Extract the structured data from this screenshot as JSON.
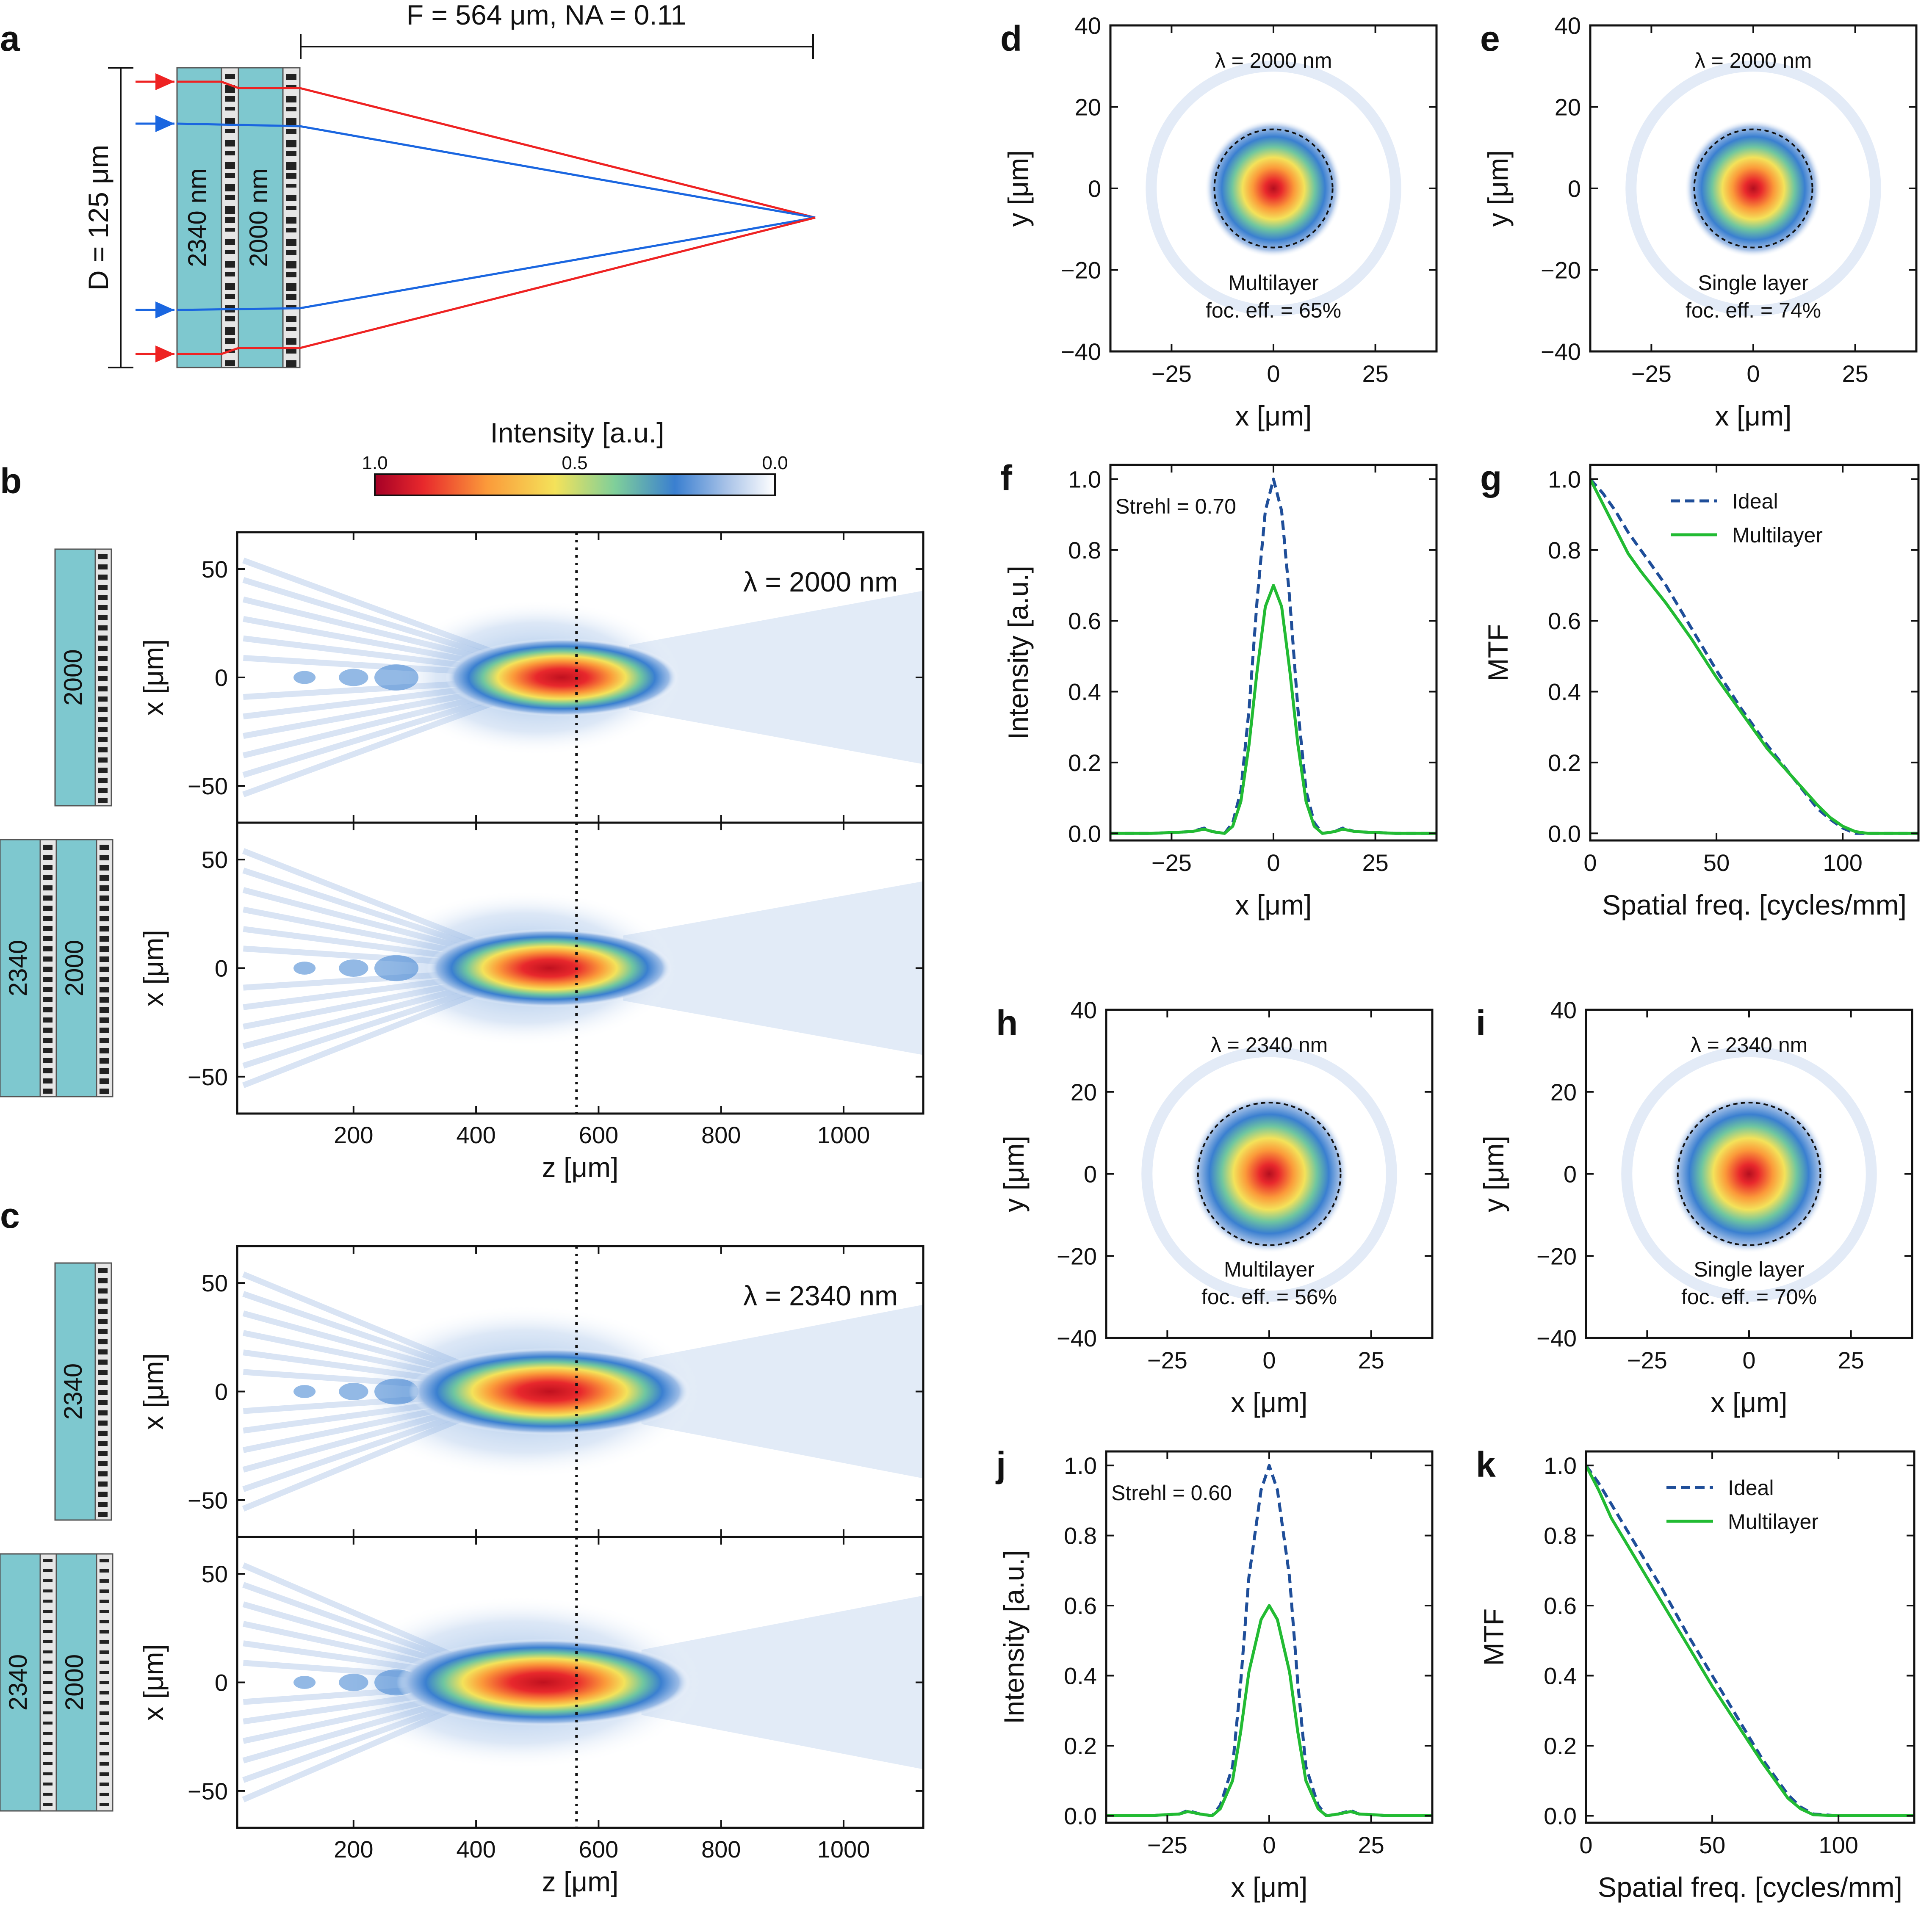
{
  "colors": {
    "ideal": "#1f4e99",
    "multilayer": "#22bb33",
    "ray_red": "#ee2222",
    "ray_blue": "#1a66e0",
    "substrate": "#7ec8cf",
    "layer": "#e6e6e6",
    "meta": "#222222"
  },
  "panel_a": {
    "letter": "a",
    "focal_label": "F = 564 μm, NA = 0.11",
    "diameter_label": "D = 125 μm",
    "layer1_label": "2340 nm",
    "layer2_label": "2000 nm"
  },
  "colorbar": {
    "title": "Intensity [a.u.]",
    "tick_labels": [
      "1.0",
      "0.5",
      "0.0"
    ],
    "colormap": "spectral-reversed (red high, white low)"
  },
  "chart_data": [
    {
      "id": "b",
      "type": "heatmap",
      "letter": "b",
      "title": "λ = 2000 nm",
      "xlabel": "z [μm]",
      "ylabel": "x [μm]",
      "xlim": [
        10,
        1130
      ],
      "ylim": [
        -67,
        67
      ],
      "xticks": [
        "200",
        "400",
        "600",
        "800",
        "1000"
      ],
      "yticks": [
        "50",
        "0",
        "−50"
      ],
      "focal_line_z": 564,
      "rows": [
        {
          "lens_labels": [
            "2000"
          ],
          "focus_center_z": 540,
          "focus_half_length": 190,
          "focus_half_width": 18,
          "fringe_start_z": 20
        },
        {
          "lens_labels": [
            "2340",
            "2000"
          ],
          "focus_center_z": 520,
          "focus_half_length": 200,
          "focus_half_width": 18,
          "fringe_start_z": 20
        }
      ]
    },
    {
      "id": "c",
      "type": "heatmap",
      "letter": "c",
      "title": "λ = 2340 nm",
      "xlabel": "z [μm]",
      "ylabel": "x [μm]",
      "xlim": [
        10,
        1130
      ],
      "ylim": [
        -67,
        67
      ],
      "xticks": [
        "200",
        "400",
        "600",
        "800",
        "1000"
      ],
      "yticks": [
        "50",
        "0",
        "−50"
      ],
      "focal_line_z": 564,
      "rows": [
        {
          "lens_labels": [
            "2340"
          ],
          "focus_center_z": 520,
          "focus_half_length": 230,
          "focus_half_width": 20,
          "fringe_start_z": 20
        },
        {
          "lens_labels": [
            "2340",
            "2000"
          ],
          "focus_center_z": 510,
          "focus_half_length": 240,
          "focus_half_width": 20,
          "fringe_start_z": 20
        }
      ]
    },
    {
      "id": "d",
      "type": "heatmap",
      "letter": "d",
      "title": "λ = 2000 nm",
      "caption_lines": [
        "Multilayer",
        "foc. eff. = 65%"
      ],
      "xlabel": "x [μm]",
      "ylabel": "y [μm]",
      "xlim": [
        -40,
        40
      ],
      "ylim": [
        -40,
        40
      ],
      "xticks": [
        "−25",
        "0",
        "25"
      ],
      "yticks": [
        "40",
        "20",
        "0",
        "−20",
        "−40"
      ],
      "spot_sigma_um": 6.5,
      "circle_radius_um": 14.5
    },
    {
      "id": "e",
      "type": "heatmap",
      "letter": "e",
      "title": "λ = 2000 nm",
      "caption_lines": [
        "Single layer",
        "foc. eff. = 74%"
      ],
      "xlabel": "x [μm]",
      "ylabel": "y [μm]",
      "xlim": [
        -40,
        40
      ],
      "ylim": [
        -40,
        40
      ],
      "xticks": [
        "−25",
        "0",
        "25"
      ],
      "yticks": [
        "40",
        "20",
        "0",
        "−20",
        "−40"
      ],
      "spot_sigma_um": 6.5,
      "circle_radius_um": 14.5
    },
    {
      "id": "h",
      "type": "heatmap",
      "letter": "h",
      "title": "λ = 2340 nm",
      "caption_lines": [
        "Multilayer",
        "foc. eff. = 56%"
      ],
      "xlabel": "x [μm]",
      "ylabel": "y [μm]",
      "xlim": [
        -40,
        40
      ],
      "ylim": [
        -40,
        40
      ],
      "xticks": [
        "−25",
        "0",
        "25"
      ],
      "yticks": [
        "40",
        "20",
        "0",
        "−20",
        "−40"
      ],
      "spot_sigma_um": 7.5,
      "circle_radius_um": 17.5
    },
    {
      "id": "i",
      "type": "heatmap",
      "letter": "i",
      "title": "λ = 2340 nm",
      "caption_lines": [
        "Single layer",
        "foc. eff. = 70%"
      ],
      "xlabel": "x [μm]",
      "ylabel": "y [μm]",
      "xlim": [
        -40,
        40
      ],
      "ylim": [
        -40,
        40
      ],
      "xticks": [
        "−25",
        "0",
        "25"
      ],
      "yticks": [
        "40",
        "20",
        "0",
        "−20",
        "−40"
      ],
      "spot_sigma_um": 7.5,
      "circle_radius_um": 17.5
    },
    {
      "id": "f",
      "type": "line",
      "letter": "f",
      "annotation": "Strehl = 0.70",
      "xlabel": "x [μm]",
      "ylabel": "Intensity [a.u.]",
      "xlim": [
        -40,
        40
      ],
      "ylim": [
        -0.02,
        1.04
      ],
      "xticks": [
        "−25",
        "0",
        "25"
      ],
      "yticks": [
        "0.0",
        "0.2",
        "0.4",
        "0.6",
        "0.8",
        "1.0"
      ],
      "series": [
        {
          "style": "ideal",
          "x": [
            -40,
            -30,
            -20,
            -17,
            -15,
            -12,
            -10,
            -8,
            -6,
            -4,
            -2,
            0,
            2,
            4,
            6,
            8,
            10,
            12,
            15,
            17,
            20,
            30,
            40
          ],
          "y": [
            0.0,
            0.0,
            0.005,
            0.015,
            0.005,
            0.0,
            0.03,
            0.12,
            0.35,
            0.66,
            0.91,
            1.0,
            0.91,
            0.66,
            0.35,
            0.12,
            0.03,
            0.0,
            0.005,
            0.015,
            0.005,
            0.0,
            0.0
          ]
        },
        {
          "style": "multilayer",
          "x": [
            -40,
            -30,
            -20,
            -17,
            -15,
            -12,
            -10,
            -8,
            -6,
            -4,
            -2,
            0,
            2,
            4,
            6,
            8,
            10,
            12,
            15,
            17,
            20,
            30,
            40
          ],
          "y": [
            0.0,
            0.0,
            0.005,
            0.012,
            0.005,
            0.0,
            0.02,
            0.09,
            0.25,
            0.46,
            0.64,
            0.7,
            0.64,
            0.46,
            0.25,
            0.09,
            0.02,
            0.0,
            0.005,
            0.012,
            0.005,
            0.0,
            0.0
          ]
        }
      ]
    },
    {
      "id": "g",
      "type": "line",
      "letter": "g",
      "xlabel": "Spatial freq. [cycles/mm]",
      "ylabel": "MTF",
      "xlim": [
        0,
        130
      ],
      "ylim": [
        -0.02,
        1.04
      ],
      "xticks": [
        "0",
        "50",
        "100"
      ],
      "yticks": [
        "0.0",
        "0.2",
        "0.4",
        "0.6",
        "0.8",
        "1.0"
      ],
      "legend": [
        "Ideal",
        "Multilayer"
      ],
      "series": [
        {
          "name": "Ideal",
          "style": "ideal",
          "x": [
            0,
            5,
            10,
            15,
            20,
            30,
            40,
            50,
            60,
            70,
            80,
            90,
            95,
            100,
            105,
            110,
            120,
            130
          ],
          "y": [
            1.0,
            0.96,
            0.91,
            0.85,
            0.8,
            0.7,
            0.58,
            0.46,
            0.35,
            0.25,
            0.16,
            0.07,
            0.04,
            0.015,
            0.0,
            0.0,
            0.0,
            0.0
          ]
        },
        {
          "name": "Multilayer",
          "style": "multilayer",
          "x": [
            0,
            5,
            10,
            15,
            20,
            30,
            40,
            50,
            60,
            70,
            80,
            90,
            95,
            100,
            105,
            110,
            120,
            130
          ],
          "y": [
            1.0,
            0.93,
            0.86,
            0.79,
            0.74,
            0.65,
            0.55,
            0.44,
            0.34,
            0.24,
            0.16,
            0.08,
            0.045,
            0.02,
            0.005,
            0.0,
            0.0,
            0.0
          ]
        }
      ]
    },
    {
      "id": "j",
      "type": "line",
      "letter": "j",
      "annotation": "Strehl = 0.60",
      "xlabel": "x [μm]",
      "ylabel": "Intensity [a.u.]",
      "xlim": [
        -40,
        40
      ],
      "ylim": [
        -0.02,
        1.04
      ],
      "xticks": [
        "−25",
        "0",
        "25"
      ],
      "yticks": [
        "0.0",
        "0.2",
        "0.4",
        "0.6",
        "0.8",
        "1.0"
      ],
      "series": [
        {
          "style": "ideal",
          "x": [
            -40,
            -30,
            -22,
            -20,
            -17,
            -14,
            -12,
            -9,
            -7,
            -5,
            -2,
            0,
            2,
            5,
            7,
            9,
            12,
            14,
            17,
            20,
            22,
            30,
            40
          ],
          "y": [
            0.0,
            0.0,
            0.005,
            0.015,
            0.005,
            0.0,
            0.03,
            0.14,
            0.38,
            0.68,
            0.93,
            1.0,
            0.93,
            0.68,
            0.38,
            0.14,
            0.03,
            0.0,
            0.005,
            0.015,
            0.005,
            0.0,
            0.0
          ]
        },
        {
          "style": "multilayer",
          "x": [
            -40,
            -30,
            -22,
            -20,
            -17,
            -14,
            -12,
            -9,
            -7,
            -5,
            -2,
            0,
            2,
            5,
            7,
            9,
            12,
            14,
            17,
            20,
            22,
            30,
            40
          ],
          "y": [
            0.0,
            0.0,
            0.005,
            0.012,
            0.005,
            0.0,
            0.02,
            0.1,
            0.24,
            0.41,
            0.56,
            0.6,
            0.56,
            0.41,
            0.24,
            0.1,
            0.02,
            0.0,
            0.005,
            0.012,
            0.005,
            0.0,
            0.0
          ]
        }
      ]
    },
    {
      "id": "k",
      "type": "line",
      "letter": "k",
      "xlabel": "Spatial freq. [cycles/mm]",
      "ylabel": "MTF",
      "xlim": [
        0,
        130
      ],
      "ylim": [
        -0.02,
        1.04
      ],
      "xticks": [
        "0",
        "50",
        "100"
      ],
      "yticks": [
        "0.0",
        "0.2",
        "0.4",
        "0.6",
        "0.8",
        "1.0"
      ],
      "legend": [
        "Ideal",
        "Multilayer"
      ],
      "series": [
        {
          "name": "Ideal",
          "style": "ideal",
          "x": [
            0,
            5,
            10,
            15,
            20,
            30,
            40,
            50,
            60,
            70,
            75,
            80,
            85,
            90,
            100,
            110,
            120,
            130
          ],
          "y": [
            1.0,
            0.95,
            0.89,
            0.83,
            0.77,
            0.65,
            0.52,
            0.4,
            0.28,
            0.16,
            0.11,
            0.06,
            0.025,
            0.005,
            0.0,
            0.0,
            0.0,
            0.0
          ]
        },
        {
          "name": "Multilayer",
          "style": "multilayer",
          "x": [
            0,
            5,
            10,
            15,
            20,
            30,
            40,
            50,
            60,
            70,
            75,
            80,
            85,
            90,
            100,
            110,
            120,
            130
          ],
          "y": [
            1.0,
            0.93,
            0.85,
            0.79,
            0.73,
            0.61,
            0.49,
            0.37,
            0.26,
            0.15,
            0.1,
            0.05,
            0.02,
            0.003,
            0.0,
            0.0,
            0.0,
            0.0
          ]
        }
      ]
    }
  ]
}
